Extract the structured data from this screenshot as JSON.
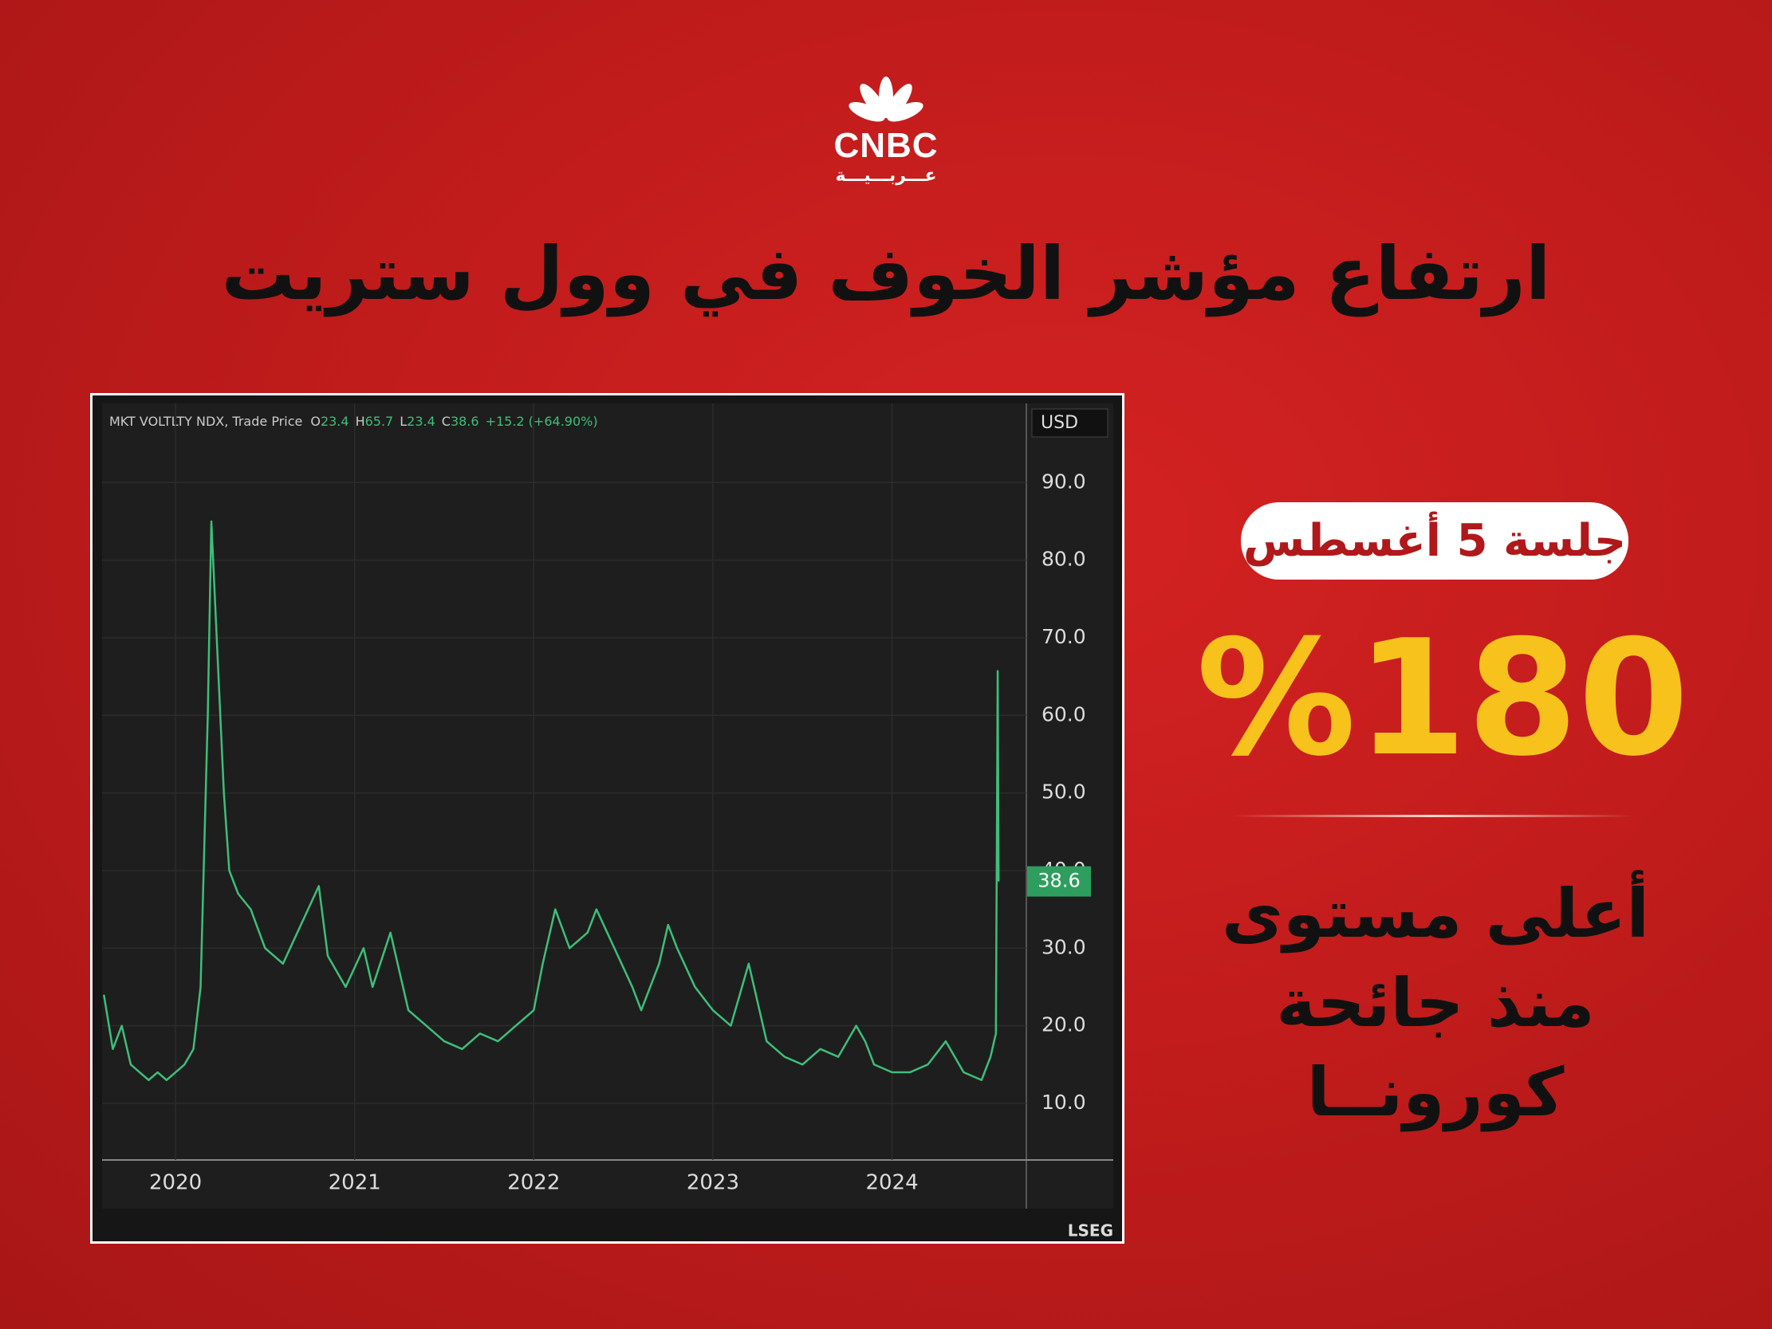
{
  "logo": {
    "name": "CNBC",
    "sub": "عـــربـــيـــة"
  },
  "title": "ارتفاع مؤشر الخوف في وول ستريت",
  "badge": "جلسة 5 أغسطس",
  "stat": "%180",
  "caption_lines": [
    "أعلى مستوى",
    "منذ جائحة",
    "كورونــا"
  ],
  "chart_data": {
    "type": "line",
    "instrument": "MKT VOLTLTY NDX, Trade Price",
    "ohlc": [
      {
        "key": "O",
        "value": "23.4"
      },
      {
        "key": "H",
        "value": "65.7"
      },
      {
        "key": "L",
        "value": "23.4"
      },
      {
        "key": "C",
        "value": "38.6"
      }
    ],
    "change": "+15.2 (+64.90%)",
    "currency": "USD",
    "source": "LSEG",
    "xlim": [
      2019.59,
      2024.75
    ],
    "xticks": [
      2020,
      2021,
      2022,
      2023,
      2024
    ],
    "ylim": [
      2.7,
      100.2
    ],
    "yticks": [
      {
        "value": 10,
        "label": "10.0"
      },
      {
        "value": 20,
        "label": "20.0"
      },
      {
        "value": 30,
        "label": "30.0"
      },
      {
        "value": 40,
        "label": "40.0"
      },
      {
        "value": 50,
        "label": "50.0"
      },
      {
        "value": 60,
        "label": "60.0"
      },
      {
        "value": 70,
        "label": "70.0"
      },
      {
        "value": 80,
        "label": "80.0"
      },
      {
        "value": 90,
        "label": "90.0"
      }
    ],
    "grid": true,
    "x": [
      2019.6,
      2019.65,
      2019.7,
      2019.75,
      2019.8,
      2019.85,
      2019.9,
      2019.95,
      2020.0,
      2020.05,
      2020.1,
      2020.14,
      2020.18,
      2020.2,
      2020.23,
      2020.27,
      2020.3,
      2020.35,
      2020.42,
      2020.5,
      2020.6,
      2020.7,
      2020.8,
      2020.85,
      2020.95,
      2021.05,
      2021.1,
      2021.2,
      2021.3,
      2021.4,
      2021.5,
      2021.6,
      2021.7,
      2021.8,
      2021.9,
      2022.0,
      2022.05,
      2022.12,
      2022.2,
      2022.3,
      2022.35,
      2022.45,
      2022.55,
      2022.6,
      2022.7,
      2022.75,
      2022.8,
      2022.9,
      2023.0,
      2023.1,
      2023.2,
      2023.3,
      2023.4,
      2023.5,
      2023.6,
      2023.7,
      2023.8,
      2023.85,
      2023.9,
      2024.0,
      2024.1,
      2024.2,
      2024.3,
      2024.4,
      2024.5,
      2024.55,
      2024.58,
      2024.59,
      2024.595
    ],
    "series": [
      {
        "name": "MKT VOLTLTY NDX",
        "color": "#3dbf7a",
        "values": [
          24,
          17,
          20,
          15,
          14,
          13,
          14,
          13,
          14,
          15,
          17,
          25,
          60,
          85,
          70,
          50,
          40,
          37,
          35,
          30,
          28,
          33,
          38,
          29,
          25,
          30,
          25,
          32,
          22,
          20,
          18,
          17,
          19,
          18,
          20,
          22,
          28,
          35,
          30,
          32,
          35,
          30,
          25,
          22,
          28,
          33,
          30,
          25,
          22,
          20,
          28,
          18,
          16,
          15,
          17,
          16,
          20,
          18,
          15,
          14,
          14,
          15,
          18,
          14,
          13,
          16,
          19,
          65.7,
          38.6
        ]
      }
    ]
  }
}
